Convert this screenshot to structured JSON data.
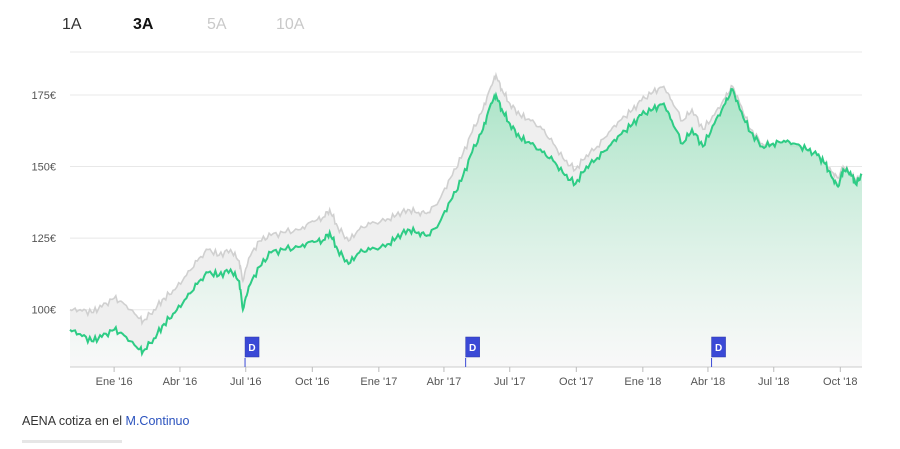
{
  "tabs": [
    {
      "label": "1A",
      "active": false
    },
    {
      "label": "3A",
      "active": true
    },
    {
      "label": "5A",
      "active": false
    },
    {
      "label": "10A",
      "active": false
    }
  ],
  "footer": {
    "text": "AENA cotiza en el ",
    "link": "M.Continuo"
  },
  "colors": {
    "series": "#2ecc85",
    "area_top": "#b6ebd0",
    "comparison": "#d0d0d0",
    "dividend_flag": "#3a49d6"
  },
  "chart_data": {
    "type": "area",
    "title": "",
    "xlabel": "",
    "ylabel": "",
    "ylim": [
      80,
      190
    ],
    "grid": true,
    "y_ticks": [
      {
        "value": 100,
        "label": "100€"
      },
      {
        "value": 125,
        "label": "125€"
      },
      {
        "value": 150,
        "label": "150€"
      },
      {
        "value": 175,
        "label": "175€"
      }
    ],
    "x_ticks": [
      {
        "date": "2016-01-01",
        "label": "Ene '16"
      },
      {
        "date": "2016-04-01",
        "label": "Abr '16"
      },
      {
        "date": "2016-07-01",
        "label": "Jul '16"
      },
      {
        "date": "2016-10-01",
        "label": "Oct '16"
      },
      {
        "date": "2017-01-01",
        "label": "Ene '17"
      },
      {
        "date": "2017-04-01",
        "label": "Abr '17"
      },
      {
        "date": "2017-07-01",
        "label": "Jul '17"
      },
      {
        "date": "2017-10-01",
        "label": "Oct '17"
      },
      {
        "date": "2018-01-01",
        "label": "Ene '18"
      },
      {
        "date": "2018-04-01",
        "label": "Abr '18"
      },
      {
        "date": "2018-07-01",
        "label": "Jul '18"
      },
      {
        "date": "2018-10-01",
        "label": "Oct '18"
      }
    ],
    "x_range": [
      "2015-11-01",
      "2018-10-31"
    ],
    "dividends": [
      {
        "date": "2016-06-30",
        "label": "D"
      },
      {
        "date": "2017-05-01",
        "label": "D"
      },
      {
        "date": "2018-04-06",
        "label": "D"
      }
    ],
    "series": [
      {
        "values": [
          [
            "2015-11-01",
            93
          ],
          [
            "2015-11-15",
            91.5
          ],
          [
            "2015-12-01",
            89
          ],
          [
            "2015-12-15",
            90.5
          ],
          [
            "2016-01-01",
            93
          ],
          [
            "2016-01-15",
            91
          ],
          [
            "2016-02-01",
            87
          ],
          [
            "2016-02-10",
            85.5
          ],
          [
            "2016-02-25",
            90
          ],
          [
            "2016-03-10",
            95
          ],
          [
            "2016-03-25",
            99
          ],
          [
            "2016-04-10",
            104
          ],
          [
            "2016-04-25",
            109
          ],
          [
            "2016-05-10",
            113
          ],
          [
            "2016-05-25",
            112
          ],
          [
            "2016-06-10",
            114
          ],
          [
            "2016-06-22",
            110
          ],
          [
            "2016-06-27",
            100
          ],
          [
            "2016-07-05",
            108
          ],
          [
            "2016-07-20",
            115
          ],
          [
            "2016-08-05",
            120
          ],
          [
            "2016-08-25",
            121
          ],
          [
            "2016-09-15",
            122
          ],
          [
            "2016-10-01",
            124
          ],
          [
            "2016-10-15",
            124
          ],
          [
            "2016-10-25",
            127
          ],
          [
            "2016-11-05",
            121
          ],
          [
            "2016-11-20",
            116
          ],
          [
            "2016-12-05",
            120
          ],
          [
            "2016-12-20",
            121
          ],
          [
            "2017-01-10",
            122
          ],
          [
            "2017-01-25",
            125
          ],
          [
            "2017-02-10",
            128
          ],
          [
            "2017-02-25",
            127
          ],
          [
            "2017-03-10",
            126
          ],
          [
            "2017-03-25",
            130
          ],
          [
            "2017-04-10",
            138
          ],
          [
            "2017-04-25",
            145
          ],
          [
            "2017-05-10",
            155
          ],
          [
            "2017-05-25",
            163
          ],
          [
            "2017-06-05",
            172
          ],
          [
            "2017-06-12",
            175
          ],
          [
            "2017-06-20",
            170
          ],
          [
            "2017-07-01",
            165
          ],
          [
            "2017-07-15",
            160
          ],
          [
            "2017-07-30",
            158
          ],
          [
            "2017-08-15",
            155
          ],
          [
            "2017-08-30",
            152
          ],
          [
            "2017-09-15",
            147
          ],
          [
            "2017-09-30",
            144
          ],
          [
            "2017-10-15",
            150
          ],
          [
            "2017-10-30",
            153
          ],
          [
            "2017-11-15",
            157
          ],
          [
            "2017-11-30",
            161
          ],
          [
            "2017-12-15",
            164
          ],
          [
            "2017-12-30",
            168
          ],
          [
            "2018-01-15",
            170
          ],
          [
            "2018-01-30",
            172
          ],
          [
            "2018-02-10",
            166
          ],
          [
            "2018-02-25",
            158
          ],
          [
            "2018-03-10",
            163
          ],
          [
            "2018-03-25",
            157
          ],
          [
            "2018-04-10",
            165
          ],
          [
            "2018-04-25",
            172
          ],
          [
            "2018-05-05",
            177
          ],
          [
            "2018-05-15",
            170
          ],
          [
            "2018-05-30",
            162
          ],
          [
            "2018-06-15",
            157
          ],
          [
            "2018-06-30",
            158
          ],
          [
            "2018-07-15",
            159
          ],
          [
            "2018-07-30",
            158
          ],
          [
            "2018-08-15",
            156
          ],
          [
            "2018-08-30",
            154
          ],
          [
            "2018-09-10",
            151
          ],
          [
            "2018-09-20",
            146
          ],
          [
            "2018-09-28",
            143
          ],
          [
            "2018-10-05",
            149
          ],
          [
            "2018-10-15",
            148
          ],
          [
            "2018-10-22",
            144
          ],
          [
            "2018-10-31",
            147
          ]
        ]
      },
      {
        "values": [
          [
            "2015-11-01",
            100
          ],
          [
            "2015-11-15",
            100
          ],
          [
            "2015-12-01",
            99
          ],
          [
            "2015-12-15",
            101
          ],
          [
            "2016-01-01",
            104
          ],
          [
            "2016-01-15",
            102
          ],
          [
            "2016-02-01",
            98
          ],
          [
            "2016-02-10",
            96
          ],
          [
            "2016-02-25",
            100
          ],
          [
            "2016-03-10",
            104
          ],
          [
            "2016-03-25",
            107
          ],
          [
            "2016-04-10",
            112
          ],
          [
            "2016-04-25",
            117
          ],
          [
            "2016-05-10",
            121
          ],
          [
            "2016-05-25",
            119
          ],
          [
            "2016-06-10",
            121
          ],
          [
            "2016-06-22",
            117
          ],
          [
            "2016-06-27",
            110
          ],
          [
            "2016-07-05",
            118
          ],
          [
            "2016-07-20",
            124
          ],
          [
            "2016-08-05",
            126
          ],
          [
            "2016-08-25",
            127
          ],
          [
            "2016-09-15",
            128
          ],
          [
            "2016-10-01",
            131
          ],
          [
            "2016-10-15",
            132
          ],
          [
            "2016-10-25",
            135
          ],
          [
            "2016-11-05",
            129
          ],
          [
            "2016-11-20",
            124
          ],
          [
            "2016-12-05",
            128
          ],
          [
            "2016-12-20",
            130
          ],
          [
            "2017-01-10",
            131
          ],
          [
            "2017-01-25",
            133
          ],
          [
            "2017-02-10",
            135
          ],
          [
            "2017-02-25",
            134
          ],
          [
            "2017-03-10",
            134
          ],
          [
            "2017-03-25",
            138
          ],
          [
            "2017-04-10",
            146
          ],
          [
            "2017-04-25",
            153
          ],
          [
            "2017-05-10",
            162
          ],
          [
            "2017-05-25",
            170
          ],
          [
            "2017-06-05",
            178
          ],
          [
            "2017-06-12",
            182
          ],
          [
            "2017-06-20",
            177
          ],
          [
            "2017-07-01",
            172
          ],
          [
            "2017-07-15",
            168
          ],
          [
            "2017-07-30",
            166
          ],
          [
            "2017-08-15",
            163
          ],
          [
            "2017-08-30",
            158
          ],
          [
            "2017-09-15",
            152
          ],
          [
            "2017-09-30",
            149
          ],
          [
            "2017-10-15",
            154
          ],
          [
            "2017-10-30",
            157
          ],
          [
            "2017-11-15",
            162
          ],
          [
            "2017-11-30",
            166
          ],
          [
            "2017-12-15",
            169
          ],
          [
            "2017-12-30",
            173
          ],
          [
            "2018-01-15",
            176
          ],
          [
            "2018-01-30",
            178
          ],
          [
            "2018-02-10",
            173
          ],
          [
            "2018-02-25",
            166
          ],
          [
            "2018-03-10",
            170
          ],
          [
            "2018-03-25",
            163
          ],
          [
            "2018-04-10",
            168
          ],
          [
            "2018-04-25",
            174
          ],
          [
            "2018-05-05",
            178
          ],
          [
            "2018-05-15",
            172
          ],
          [
            "2018-05-30",
            163
          ],
          [
            "2018-06-15",
            158
          ],
          [
            "2018-06-30",
            158
          ],
          [
            "2018-07-15",
            159
          ],
          [
            "2018-07-30",
            157
          ],
          [
            "2018-08-15",
            156
          ],
          [
            "2018-08-30",
            154
          ],
          [
            "2018-09-10",
            151
          ],
          [
            "2018-09-20",
            148
          ],
          [
            "2018-09-28",
            146
          ],
          [
            "2018-10-05",
            150
          ],
          [
            "2018-10-15",
            148
          ],
          [
            "2018-10-22",
            145
          ],
          [
            "2018-10-31",
            147
          ]
        ]
      }
    ]
  }
}
